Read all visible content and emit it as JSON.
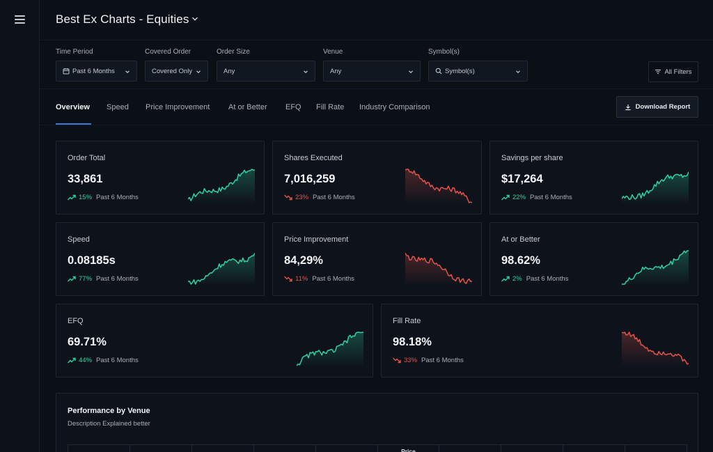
{
  "header": {
    "title": "Best Ex Charts - Equities"
  },
  "filters": {
    "time_period": {
      "label": "Time Period",
      "value": "Past 6 Months"
    },
    "covered_order": {
      "label": "Covered Order",
      "value": "Covered Only"
    },
    "order_size": {
      "label": "Order Size",
      "value": "Any"
    },
    "venue": {
      "label": "Venue",
      "value": "Any"
    },
    "symbols": {
      "label": "Symbol(s)",
      "value": "Symbol(s)"
    },
    "all_filters": "All Filters"
  },
  "tabs": [
    "Overview",
    "Speed",
    "Price Improvement",
    "At or Better",
    "EFQ",
    "Fill Rate",
    "Industry Comparison"
  ],
  "download_label": "Download Report",
  "colors": {
    "up": "#2fd39f",
    "down": "#e5534b",
    "accent": "#3a78d6"
  },
  "cards": [
    {
      "title": "Order Total",
      "value": "33,861",
      "change": "15%",
      "trend": "up",
      "period": "Past 6 Months"
    },
    {
      "title": "Shares Executed",
      "value": "7,016,259",
      "change": "23%",
      "trend": "down",
      "period": "Past 6 Months"
    },
    {
      "title": "Savings per share",
      "value": "$17,264",
      "change": "22%",
      "trend": "up",
      "period": "Past 6 Months"
    },
    {
      "title": "Speed",
      "value": "0.08185s",
      "change": "77%",
      "trend": "up",
      "period": "Past 6 Months"
    },
    {
      "title": "Price Improvement",
      "value": "84,29%",
      "change": "11%",
      "trend": "down",
      "period": "Past 6 Months"
    },
    {
      "title": "At or Better",
      "value": "98.62%",
      "change": "2%",
      "trend": "up",
      "period": "Past 6 Months"
    },
    {
      "title": "EFQ",
      "value": "69.71%",
      "change": "44%",
      "trend": "up",
      "period": "Past 6 Months"
    },
    {
      "title": "Fill Rate",
      "value": "98.18%",
      "change": "33%",
      "trend": "down",
      "period": "Past 6 Months"
    }
  ],
  "performance": {
    "title": "Performance by Venue",
    "description": "Description Explained better",
    "table_headers": [
      "",
      "",
      "",
      "",
      "",
      "Price",
      "",
      "",
      "",
      ""
    ]
  }
}
